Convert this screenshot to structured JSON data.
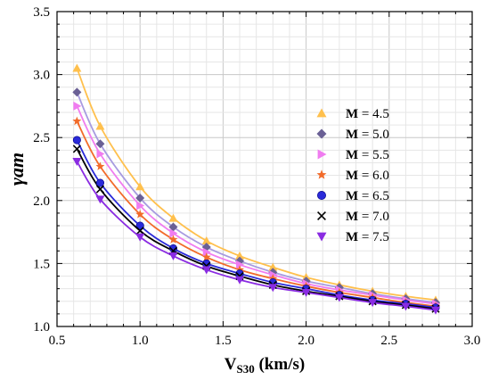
{
  "chart_data": {
    "type": "line",
    "title": "",
    "xlabel": {
      "main": "V",
      "sub": "S30",
      "rest": " (km/s)"
    },
    "ylabel": "γam",
    "xlim": [
      0.5,
      3.0
    ],
    "ylim": [
      1.0,
      3.5
    ],
    "x_ticks": [
      "0.5",
      "1.0",
      "1.5",
      "2.0",
      "2.5",
      "3.0"
    ],
    "y_ticks": [
      "1.0",
      "1.5",
      "2.0",
      "2.5",
      "3.0",
      "3.5"
    ],
    "minor_grid": true,
    "legend_position": "right-center",
    "x": [
      0.62,
      0.76,
      1.0,
      1.2,
      1.4,
      1.6,
      1.8,
      2.0,
      2.2,
      2.4,
      2.6,
      2.78
    ],
    "series": [
      {
        "name_prefix": "M",
        "name_value": " = 4.5",
        "marker": "triangle-up",
        "color": "#FFC04D",
        "line_color": "#FFC04D",
        "values": [
          3.05,
          2.59,
          2.11,
          1.86,
          1.68,
          1.56,
          1.47,
          1.39,
          1.33,
          1.28,
          1.24,
          1.21
        ]
      },
      {
        "name_prefix": "M",
        "name_value": " = 5.0",
        "marker": "diamond",
        "color": "#6A6095",
        "line_color": "#A79BE0",
        "values": [
          2.86,
          2.45,
          2.02,
          1.79,
          1.63,
          1.52,
          1.43,
          1.36,
          1.31,
          1.26,
          1.22,
          1.19
        ]
      },
      {
        "name_prefix": "M",
        "name_value": " = 5.5",
        "marker": "triangle-right",
        "color": "#F07CF0",
        "line_color": "#F07CF0",
        "values": [
          2.75,
          2.37,
          1.96,
          1.74,
          1.59,
          1.49,
          1.41,
          1.34,
          1.29,
          1.25,
          1.21,
          1.18
        ]
      },
      {
        "name_prefix": "M",
        "name_value": " = 6.0",
        "marker": "star",
        "color": "#F26B2A",
        "line_color": "#F26B2A",
        "values": [
          2.63,
          2.27,
          1.89,
          1.69,
          1.55,
          1.45,
          1.38,
          1.32,
          1.27,
          1.23,
          1.19,
          1.16
        ]
      },
      {
        "name_prefix": "M",
        "name_value": " = 6.5",
        "marker": "circle",
        "color": "#2A2AD9",
        "line_color": "#2A2AD9",
        "values": [
          2.48,
          2.14,
          1.8,
          1.62,
          1.5,
          1.42,
          1.35,
          1.3,
          1.25,
          1.21,
          1.18,
          1.15
        ]
      },
      {
        "name_prefix": "M",
        "name_value": " = 7.0",
        "marker": "x",
        "color": "#000000",
        "line_color": "#000000",
        "values": [
          2.41,
          2.09,
          1.76,
          1.6,
          1.48,
          1.4,
          1.33,
          1.28,
          1.24,
          1.2,
          1.17,
          1.14
        ]
      },
      {
        "name_prefix": "M",
        "name_value": " = 7.5",
        "marker": "triangle-down",
        "color": "#8A2BE2",
        "line_color": "#8A2BE2",
        "values": [
          2.31,
          2.01,
          1.71,
          1.56,
          1.45,
          1.37,
          1.31,
          1.27,
          1.23,
          1.19,
          1.16,
          1.13
        ]
      }
    ]
  }
}
